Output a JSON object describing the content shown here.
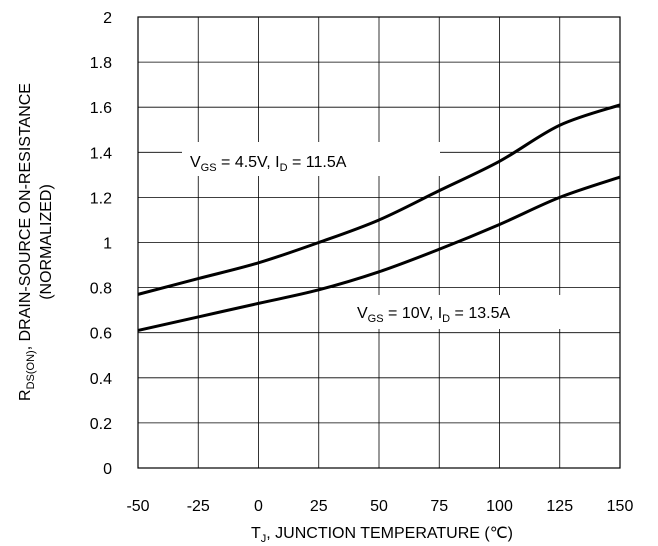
{
  "chart_data": {
    "type": "line",
    "xlabel_main": "T",
    "xlabel_sub": "J",
    "xlabel_rest": ", JUNCTION TEMPERATURE (℃)",
    "ylabel_line1_main": "R",
    "ylabel_line1_sub": "DS(ON)",
    "ylabel_line1_rest": ", DRAIN-SOURCE ON-RESISTANCE",
    "ylabel_line2": "(NORMALIZED)",
    "xlim": [
      -50,
      150
    ],
    "ylim": [
      0,
      2
    ],
    "xticks": [
      "-50",
      "-25",
      "0",
      "25",
      "50",
      "75",
      "100",
      "125",
      "150"
    ],
    "yticks": [
      "0",
      "0.2",
      "0.4",
      "0.6",
      "0.8",
      "1",
      "1.2",
      "1.4",
      "1.6",
      "1.8",
      "2"
    ],
    "xtick_values": [
      -50,
      -25,
      0,
      25,
      50,
      75,
      100,
      125,
      150
    ],
    "ytick_values": [
      0,
      0.2,
      0.4,
      0.6,
      0.8,
      1.0,
      1.2,
      1.4,
      1.6,
      1.8,
      2.0
    ],
    "grid": true,
    "series": [
      {
        "x": [
          -50,
          -25,
          0,
          25,
          50,
          75,
          100,
          125,
          150
        ],
        "values": [
          0.77,
          0.84,
          0.91,
          1.0,
          1.1,
          1.23,
          1.36,
          1.52,
          1.61
        ]
      },
      {
        "x": [
          -50,
          -25,
          0,
          25,
          50,
          75,
          100,
          125,
          150
        ],
        "values": [
          0.61,
          0.67,
          0.73,
          0.79,
          0.87,
          0.97,
          1.08,
          1.2,
          1.29
        ]
      }
    ],
    "annotations": [
      {
        "v_main": "V",
        "v_sub": "GS",
        "mid": " = 4.5V, I",
        "i_sub": "D",
        "rest": " = 11.5A"
      },
      {
        "v_main": "V",
        "v_sub": "GS",
        "mid": " = 10V, I",
        "i_sub": "D",
        "rest": " = 13.5A"
      }
    ]
  }
}
